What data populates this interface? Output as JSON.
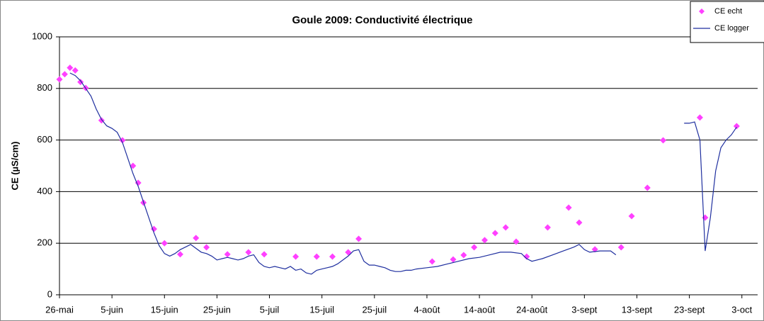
{
  "chart_data": {
    "type": "scatter-line",
    "title": "Goule 2009: Conductivité électrique",
    "y_label": "CE (µS/cm)",
    "legend": "top-right",
    "grid": true,
    "xlim": [
      "05-26",
      "10-06"
    ],
    "ylim": [
      0,
      1000
    ],
    "yticks": [
      0,
      200,
      400,
      600,
      800,
      1000
    ],
    "xticks": [
      {
        "value": "05-26",
        "label": "26-mai"
      },
      {
        "value": "06-05",
        "label": "5-juin"
      },
      {
        "value": "06-15",
        "label": "15-juin"
      },
      {
        "value": "06-25",
        "label": "25-juin"
      },
      {
        "value": "07-05",
        "label": "5-juil"
      },
      {
        "value": "07-15",
        "label": "15-juil"
      },
      {
        "value": "07-25",
        "label": "25-juil"
      },
      {
        "value": "08-04",
        "label": "4-août"
      },
      {
        "value": "08-14",
        "label": "14-août"
      },
      {
        "value": "08-24",
        "label": "24-août"
      },
      {
        "value": "09-03",
        "label": "3-sept"
      },
      {
        "value": "09-13",
        "label": "13-sept"
      },
      {
        "value": "09-23",
        "label": "23-sept"
      },
      {
        "value": "10-03",
        "label": "3-oct"
      }
    ],
    "series": [
      {
        "name": "CE echt",
        "style": "markers",
        "color": "#ff40ff",
        "x": [
          "05-26",
          "05-27",
          "05-28",
          "05-29",
          "05-30",
          "05-31",
          "06-03",
          "06-07",
          "06-09",
          "06-10",
          "06-11",
          "06-13",
          "06-15",
          "06-18",
          "06-21",
          "06-23",
          "06-27",
          "07-01",
          "07-04",
          "07-10",
          "07-14",
          "07-17",
          "07-20",
          "07-22",
          "08-05",
          "08-09",
          "08-11",
          "08-13",
          "08-15",
          "08-17",
          "08-19",
          "08-21",
          "08-23",
          "08-27",
          "08-31",
          "09-02",
          "09-05",
          "09-10",
          "09-12",
          "09-15",
          "09-18",
          "09-25",
          "09-26",
          "10-02"
        ],
        "values": [
          835,
          855,
          880,
          870,
          825,
          802,
          676,
          599,
          500,
          434,
          357,
          255,
          200,
          157,
          220,
          184,
          157,
          165,
          157,
          148,
          148,
          148,
          165,
          217,
          129,
          137,
          154,
          184,
          212,
          239,
          261,
          206,
          148,
          261,
          338,
          280,
          176,
          184,
          305,
          415,
          599,
          687,
          299,
          654
        ]
      },
      {
        "name": "CE logger",
        "style": "line",
        "color": "#1f2f9f",
        "x": [
          "05-28",
          "05-29",
          "05-30",
          "05-31",
          "06-01",
          "06-02",
          "06-03",
          "06-04",
          "06-05",
          "06-06",
          "06-07",
          "06-08",
          "06-09",
          "06-10",
          "06-11",
          "06-12",
          "06-13",
          "06-14",
          "06-15",
          "06-16",
          "06-17",
          "06-18",
          "06-19",
          "06-20",
          "06-21",
          "06-22",
          "06-23",
          "06-24",
          "06-25",
          "06-26",
          "06-27",
          "06-28",
          "06-29",
          "06-30",
          "07-01",
          "07-02",
          "07-03",
          "07-04",
          "07-05",
          "07-06",
          "07-07",
          "07-08",
          "07-09",
          "07-10",
          "07-11",
          "07-12",
          "07-13",
          "07-14",
          "07-15",
          "07-16",
          "07-17",
          "07-18",
          "07-19",
          "07-20",
          "07-21",
          "07-22",
          "07-23",
          "07-24",
          "07-25",
          "07-26",
          "07-27",
          "07-28",
          "07-29",
          "07-30",
          "07-31",
          "08-01",
          "08-02",
          "08-04",
          "08-06",
          "08-08",
          "08-10",
          "08-12",
          "08-14",
          "08-16",
          "08-18",
          "08-20",
          "08-22",
          "08-23",
          "08-24",
          "08-26",
          "08-28",
          "08-30",
          "09-01",
          "09-02",
          "09-03",
          "09-04",
          "09-06",
          "09-08",
          "09-09",
          "09-15",
          "09-22",
          "09-23",
          "09-24",
          "09-25",
          "09-26",
          "09-27",
          "09-28",
          "09-29",
          "09-30",
          "10-01",
          "10-02"
        ],
        "values": [
          860,
          850,
          830,
          800,
          770,
          720,
          680,
          655,
          645,
          630,
          590,
          530,
          470,
          420,
          360,
          300,
          240,
          190,
          160,
          150,
          160,
          175,
          185,
          195,
          180,
          165,
          160,
          150,
          135,
          140,
          145,
          140,
          135,
          140,
          150,
          155,
          125,
          110,
          105,
          110,
          105,
          100,
          110,
          95,
          100,
          85,
          80,
          95,
          100,
          105,
          110,
          120,
          135,
          150,
          170,
          175,
          130,
          115,
          115,
          110,
          105,
          95,
          90,
          90,
          95,
          95,
          100,
          105,
          110,
          120,
          130,
          140,
          145,
          155,
          165,
          165,
          160,
          140,
          130,
          140,
          155,
          170,
          185,
          195,
          175,
          165,
          170,
          170,
          155,
          null,
          665,
          665,
          670,
          600,
          170,
          300,
          480,
          570,
          600,
          620,
          650
        ]
      }
    ]
  }
}
